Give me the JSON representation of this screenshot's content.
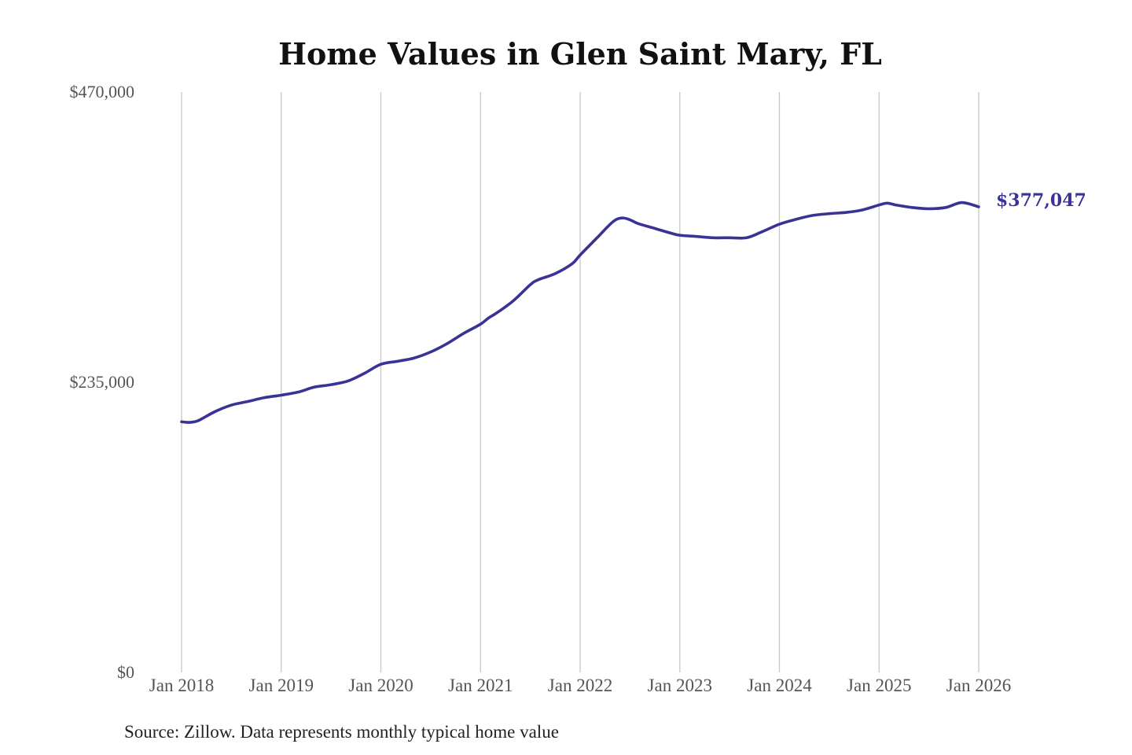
{
  "chart_data": {
    "type": "line",
    "title": "Home Values in Glen Saint Mary, FL",
    "source": "Source: Zillow. Data represents monthly typical home value",
    "xlabel": "",
    "ylabel": "",
    "ylim": [
      0,
      470000
    ],
    "yticks": [
      {
        "value": 0,
        "label": "$0"
      },
      {
        "value": 235000,
        "label": "$235,000"
      },
      {
        "value": 470000,
        "label": "$470,000"
      }
    ],
    "xlim": [
      2018.0,
      2026.0
    ],
    "xticks": [
      {
        "value": 2018,
        "label": "Jan 2018"
      },
      {
        "value": 2019,
        "label": "Jan 2019"
      },
      {
        "value": 2020,
        "label": "Jan 2020"
      },
      {
        "value": 2021,
        "label": "Jan 2021"
      },
      {
        "value": 2022,
        "label": "Jan 2022"
      },
      {
        "value": 2023,
        "label": "Jan 2023"
      },
      {
        "value": 2024,
        "label": "Jan 2024"
      },
      {
        "value": 2025,
        "label": "Jan 2025"
      },
      {
        "value": 2026,
        "label": "Jan 2026"
      }
    ],
    "grid": {
      "vertical": true,
      "horizontal": false
    },
    "legend": "none",
    "line_color": "#3a3396",
    "end_label": "$377,047",
    "series": [
      {
        "x": [
          2018.0,
          2018.08,
          2018.17,
          2018.33,
          2018.5,
          2018.67,
          2018.83,
          2019.0,
          2019.17,
          2019.33,
          2019.5,
          2019.67,
          2019.83,
          2020.0,
          2020.17,
          2020.33,
          2020.5,
          2020.67,
          2020.83,
          2021.0,
          2021.08,
          2021.17,
          2021.33,
          2021.5,
          2021.58,
          2021.75,
          2021.92,
          2022.0,
          2022.17,
          2022.33,
          2022.42,
          2022.5,
          2022.58,
          2022.75,
          2022.92,
          2023.0,
          2023.17,
          2023.33,
          2023.5,
          2023.67,
          2023.83,
          2024.0,
          2024.17,
          2024.33,
          2024.5,
          2024.67,
          2024.83,
          2025.0,
          2025.08,
          2025.17,
          2025.33,
          2025.5,
          2025.67,
          2025.83,
          2026.0
        ],
        "y": [
          203000,
          202500,
          204000,
          211000,
          216500,
          219500,
          222500,
          224500,
          227000,
          231000,
          233000,
          236000,
          242000,
          249500,
          252000,
          254500,
          259500,
          266500,
          274500,
          282000,
          287000,
          291500,
          301000,
          314000,
          318000,
          323000,
          331000,
          338000,
          352000,
          365000,
          368000,
          366500,
          363500,
          359500,
          355500,
          354000,
          353000,
          352000,
          352000,
          352000,
          357000,
          363000,
          367000,
          370000,
          371500,
          372500,
          374500,
          378500,
          380000,
          378500,
          376500,
          375500,
          376500,
          380500,
          377047
        ]
      }
    ]
  }
}
